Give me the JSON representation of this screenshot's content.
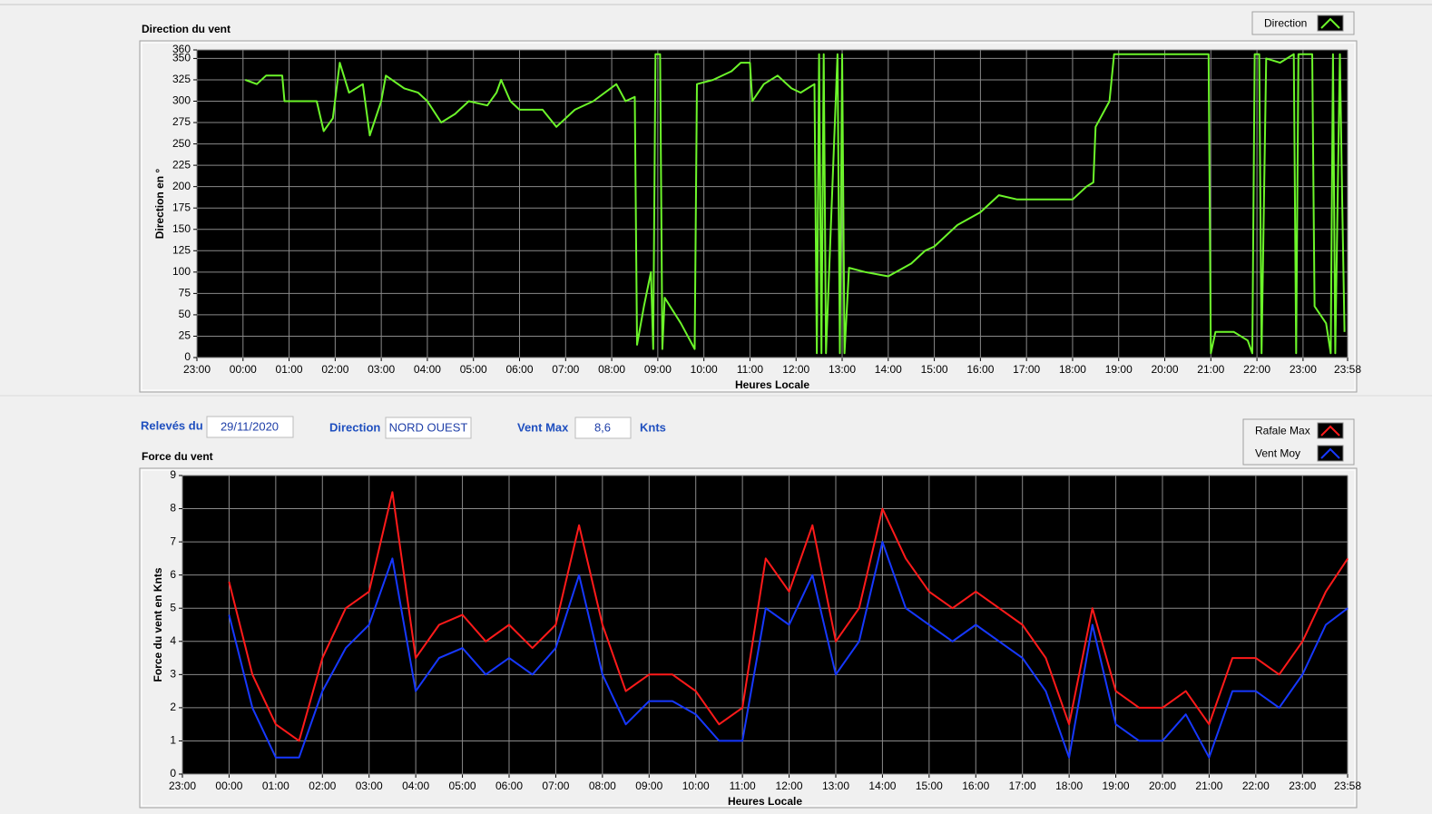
{
  "form": {
    "date_label": "Relevés du",
    "date": "29/11/2020",
    "direction_label": "Direction",
    "direction": "NORD OUEST",
    "vmax_label": "Vent Max",
    "vmax": "8,6",
    "unit": "Knts"
  },
  "chart_data": [
    {
      "type": "line",
      "title": "Direction du vent",
      "x_label": "Heures Locale",
      "y_label": "Direction en °",
      "grid": true,
      "xlim": [
        0,
        24.967
      ],
      "ylim": [
        0,
        360
      ],
      "xticks": [
        {
          "value": 0,
          "label": "23:00"
        },
        {
          "value": 1,
          "label": "00:00"
        },
        {
          "value": 2,
          "label": "01:00"
        },
        {
          "value": 3,
          "label": "02:00"
        },
        {
          "value": 4,
          "label": "03:00"
        },
        {
          "value": 5,
          "label": "04:00"
        },
        {
          "value": 6,
          "label": "05:00"
        },
        {
          "value": 7,
          "label": "06:00"
        },
        {
          "value": 8,
          "label": "07:00"
        },
        {
          "value": 9,
          "label": "08:00"
        },
        {
          "value": 10,
          "label": "09:00"
        },
        {
          "value": 11,
          "label": "10:00"
        },
        {
          "value": 12,
          "label": "11:00"
        },
        {
          "value": 13,
          "label": "12:00"
        },
        {
          "value": 14,
          "label": "13:00"
        },
        {
          "value": 15,
          "label": "14:00"
        },
        {
          "value": 16,
          "label": "15:00"
        },
        {
          "value": 17,
          "label": "16:00"
        },
        {
          "value": 18,
          "label": "17:00"
        },
        {
          "value": 19,
          "label": "18:00"
        },
        {
          "value": 20,
          "label": "19:00"
        },
        {
          "value": 21,
          "label": "20:00"
        },
        {
          "value": 22,
          "label": "21:00"
        },
        {
          "value": 23,
          "label": "22:00"
        },
        {
          "value": 24,
          "label": "23:00"
        },
        {
          "value": 24.967,
          "label": "23:58"
        }
      ],
      "yticks": [
        0,
        25,
        50,
        75,
        100,
        125,
        150,
        175,
        200,
        225,
        250,
        275,
        300,
        325,
        350,
        360
      ],
      "x": [
        1.05,
        1.3,
        1.5,
        1.85,
        1.9,
        2.6,
        2.75,
        2.95,
        3.1,
        3.3,
        3.6,
        3.75,
        4.0,
        4.1,
        4.5,
        4.8,
        5.0,
        5.3,
        5.6,
        5.9,
        6.3,
        6.5,
        6.6,
        6.8,
        7.0,
        7.5,
        7.8,
        8.2,
        8.6,
        9.1,
        9.3,
        9.5,
        9.55,
        9.7,
        9.85,
        9.9,
        9.95,
        10.05,
        10.1,
        10.15,
        10.5,
        10.8,
        10.85,
        11.2,
        11.6,
        11.8,
        12.0,
        12.05,
        12.3,
        12.6,
        12.9,
        13.1,
        13.4,
        13.45,
        13.5,
        13.55,
        13.6,
        13.65,
        13.9,
        13.95,
        14.0,
        14.05,
        14.15,
        14.5,
        15.0,
        15.5,
        15.8,
        16.0,
        16.5,
        17.0,
        17.4,
        17.8,
        19.0,
        19.3,
        19.45,
        19.5,
        19.8,
        19.9,
        21.95,
        22.0,
        22.1,
        22.5,
        22.8,
        22.9,
        22.95,
        23.05,
        23.1,
        23.2,
        23.5,
        23.8,
        23.85,
        23.9,
        24.2,
        24.25,
        24.5,
        24.6,
        24.65,
        24.7,
        24.8,
        24.85,
        24.9
      ],
      "series": [
        {
          "name": "Direction",
          "color": "#6cf52a",
          "values": [
            325,
            320,
            330,
            330,
            300,
            300,
            265,
            280,
            345,
            310,
            320,
            260,
            300,
            330,
            315,
            310,
            300,
            275,
            285,
            300,
            295,
            310,
            325,
            300,
            290,
            290,
            270,
            290,
            300,
            320,
            300,
            305,
            15,
            60,
            100,
            10,
            355,
            355,
            10,
            70,
            40,
            10,
            320,
            325,
            335,
            345,
            345,
            300,
            320,
            330,
            315,
            310,
            320,
            5,
            355,
            5,
            355,
            5,
            355,
            5,
            355,
            5,
            105,
            100,
            95,
            110,
            125,
            130,
            155,
            170,
            190,
            185,
            185,
            200,
            205,
            270,
            300,
            355,
            355,
            5,
            30,
            30,
            20,
            5,
            355,
            355,
            5,
            350,
            345,
            355,
            5,
            355,
            355,
            60,
            40,
            5,
            355,
            5,
            355,
            180,
            30
          ]
        }
      ]
    },
    {
      "type": "line",
      "title": "Force du vent",
      "x_label": "Heures Locale",
      "y_label": "Force du vent en Knts",
      "grid": true,
      "xlim": [
        0,
        24.967
      ],
      "ylim": [
        0,
        9
      ],
      "xticks": [
        {
          "value": 0,
          "label": "23:00"
        },
        {
          "value": 1,
          "label": "00:00"
        },
        {
          "value": 2,
          "label": "01:00"
        },
        {
          "value": 3,
          "label": "02:00"
        },
        {
          "value": 4,
          "label": "03:00"
        },
        {
          "value": 5,
          "label": "04:00"
        },
        {
          "value": 6,
          "label": "05:00"
        },
        {
          "value": 7,
          "label": "06:00"
        },
        {
          "value": 8,
          "label": "07:00"
        },
        {
          "value": 9,
          "label": "08:00"
        },
        {
          "value": 10,
          "label": "09:00"
        },
        {
          "value": 11,
          "label": "10:00"
        },
        {
          "value": 12,
          "label": "11:00"
        },
        {
          "value": 13,
          "label": "12:00"
        },
        {
          "value": 14,
          "label": "13:00"
        },
        {
          "value": 15,
          "label": "14:00"
        },
        {
          "value": 16,
          "label": "15:00"
        },
        {
          "value": 17,
          "label": "16:00"
        },
        {
          "value": 18,
          "label": "17:00"
        },
        {
          "value": 19,
          "label": "18:00"
        },
        {
          "value": 20,
          "label": "19:00"
        },
        {
          "value": 21,
          "label": "20:00"
        },
        {
          "value": 22,
          "label": "21:00"
        },
        {
          "value": 23,
          "label": "22:00"
        },
        {
          "value": 24,
          "label": "23:00"
        },
        {
          "value": 24.967,
          "label": "23:58"
        }
      ],
      "yticks": [
        0,
        1,
        2,
        3,
        4,
        5,
        6,
        7,
        8,
        9
      ],
      "x": [
        1,
        1.5,
        2,
        2.5,
        3,
        3.5,
        4,
        4.5,
        5,
        5.5,
        6,
        6.5,
        7,
        7.5,
        8,
        8.5,
        9,
        9.5,
        10,
        10.5,
        11,
        11.5,
        12,
        12.5,
        13,
        13.5,
        14,
        14.5,
        15,
        15.5,
        16,
        16.5,
        17,
        17.5,
        18,
        18.5,
        19,
        19.5,
        20,
        20.5,
        21,
        21.5,
        22,
        22.5,
        23,
        23.5,
        24,
        24.5,
        24.97
      ],
      "series": [
        {
          "name": "Rafale Max",
          "color": "#ff1a1a",
          "values": [
            5.8,
            3.0,
            1.5,
            1.0,
            3.5,
            5.0,
            5.5,
            8.5,
            3.5,
            4.5,
            4.8,
            4.0,
            4.5,
            3.8,
            4.5,
            7.5,
            4.5,
            2.5,
            3.0,
            3.0,
            2.5,
            1.5,
            2.0,
            6.5,
            5.5,
            7.5,
            4.0,
            5.0,
            8.0,
            6.5,
            5.5,
            5.0,
            5.5,
            5.0,
            4.5,
            3.5,
            1.5,
            5.0,
            2.5,
            2.0,
            2.0,
            2.5,
            1.5,
            3.5,
            3.5,
            3.0,
            4.0,
            5.5,
            6.5
          ]
        },
        {
          "name": "Vent Moy",
          "color": "#1638ff",
          "values": [
            4.8,
            2.0,
            0.5,
            0.5,
            2.5,
            3.8,
            4.5,
            6.5,
            2.5,
            3.5,
            3.8,
            3.0,
            3.5,
            3.0,
            3.8,
            6.0,
            3.0,
            1.5,
            2.2,
            2.2,
            1.8,
            1.0,
            1.0,
            5.0,
            4.5,
            6.0,
            3.0,
            4.0,
            7.0,
            5.0,
            4.5,
            4.0,
            4.5,
            4.0,
            3.5,
            2.5,
            0.5,
            4.5,
            1.5,
            1.0,
            1.0,
            1.8,
            0.5,
            2.5,
            2.5,
            2.0,
            3.0,
            4.5,
            5.0
          ]
        }
      ]
    }
  ]
}
